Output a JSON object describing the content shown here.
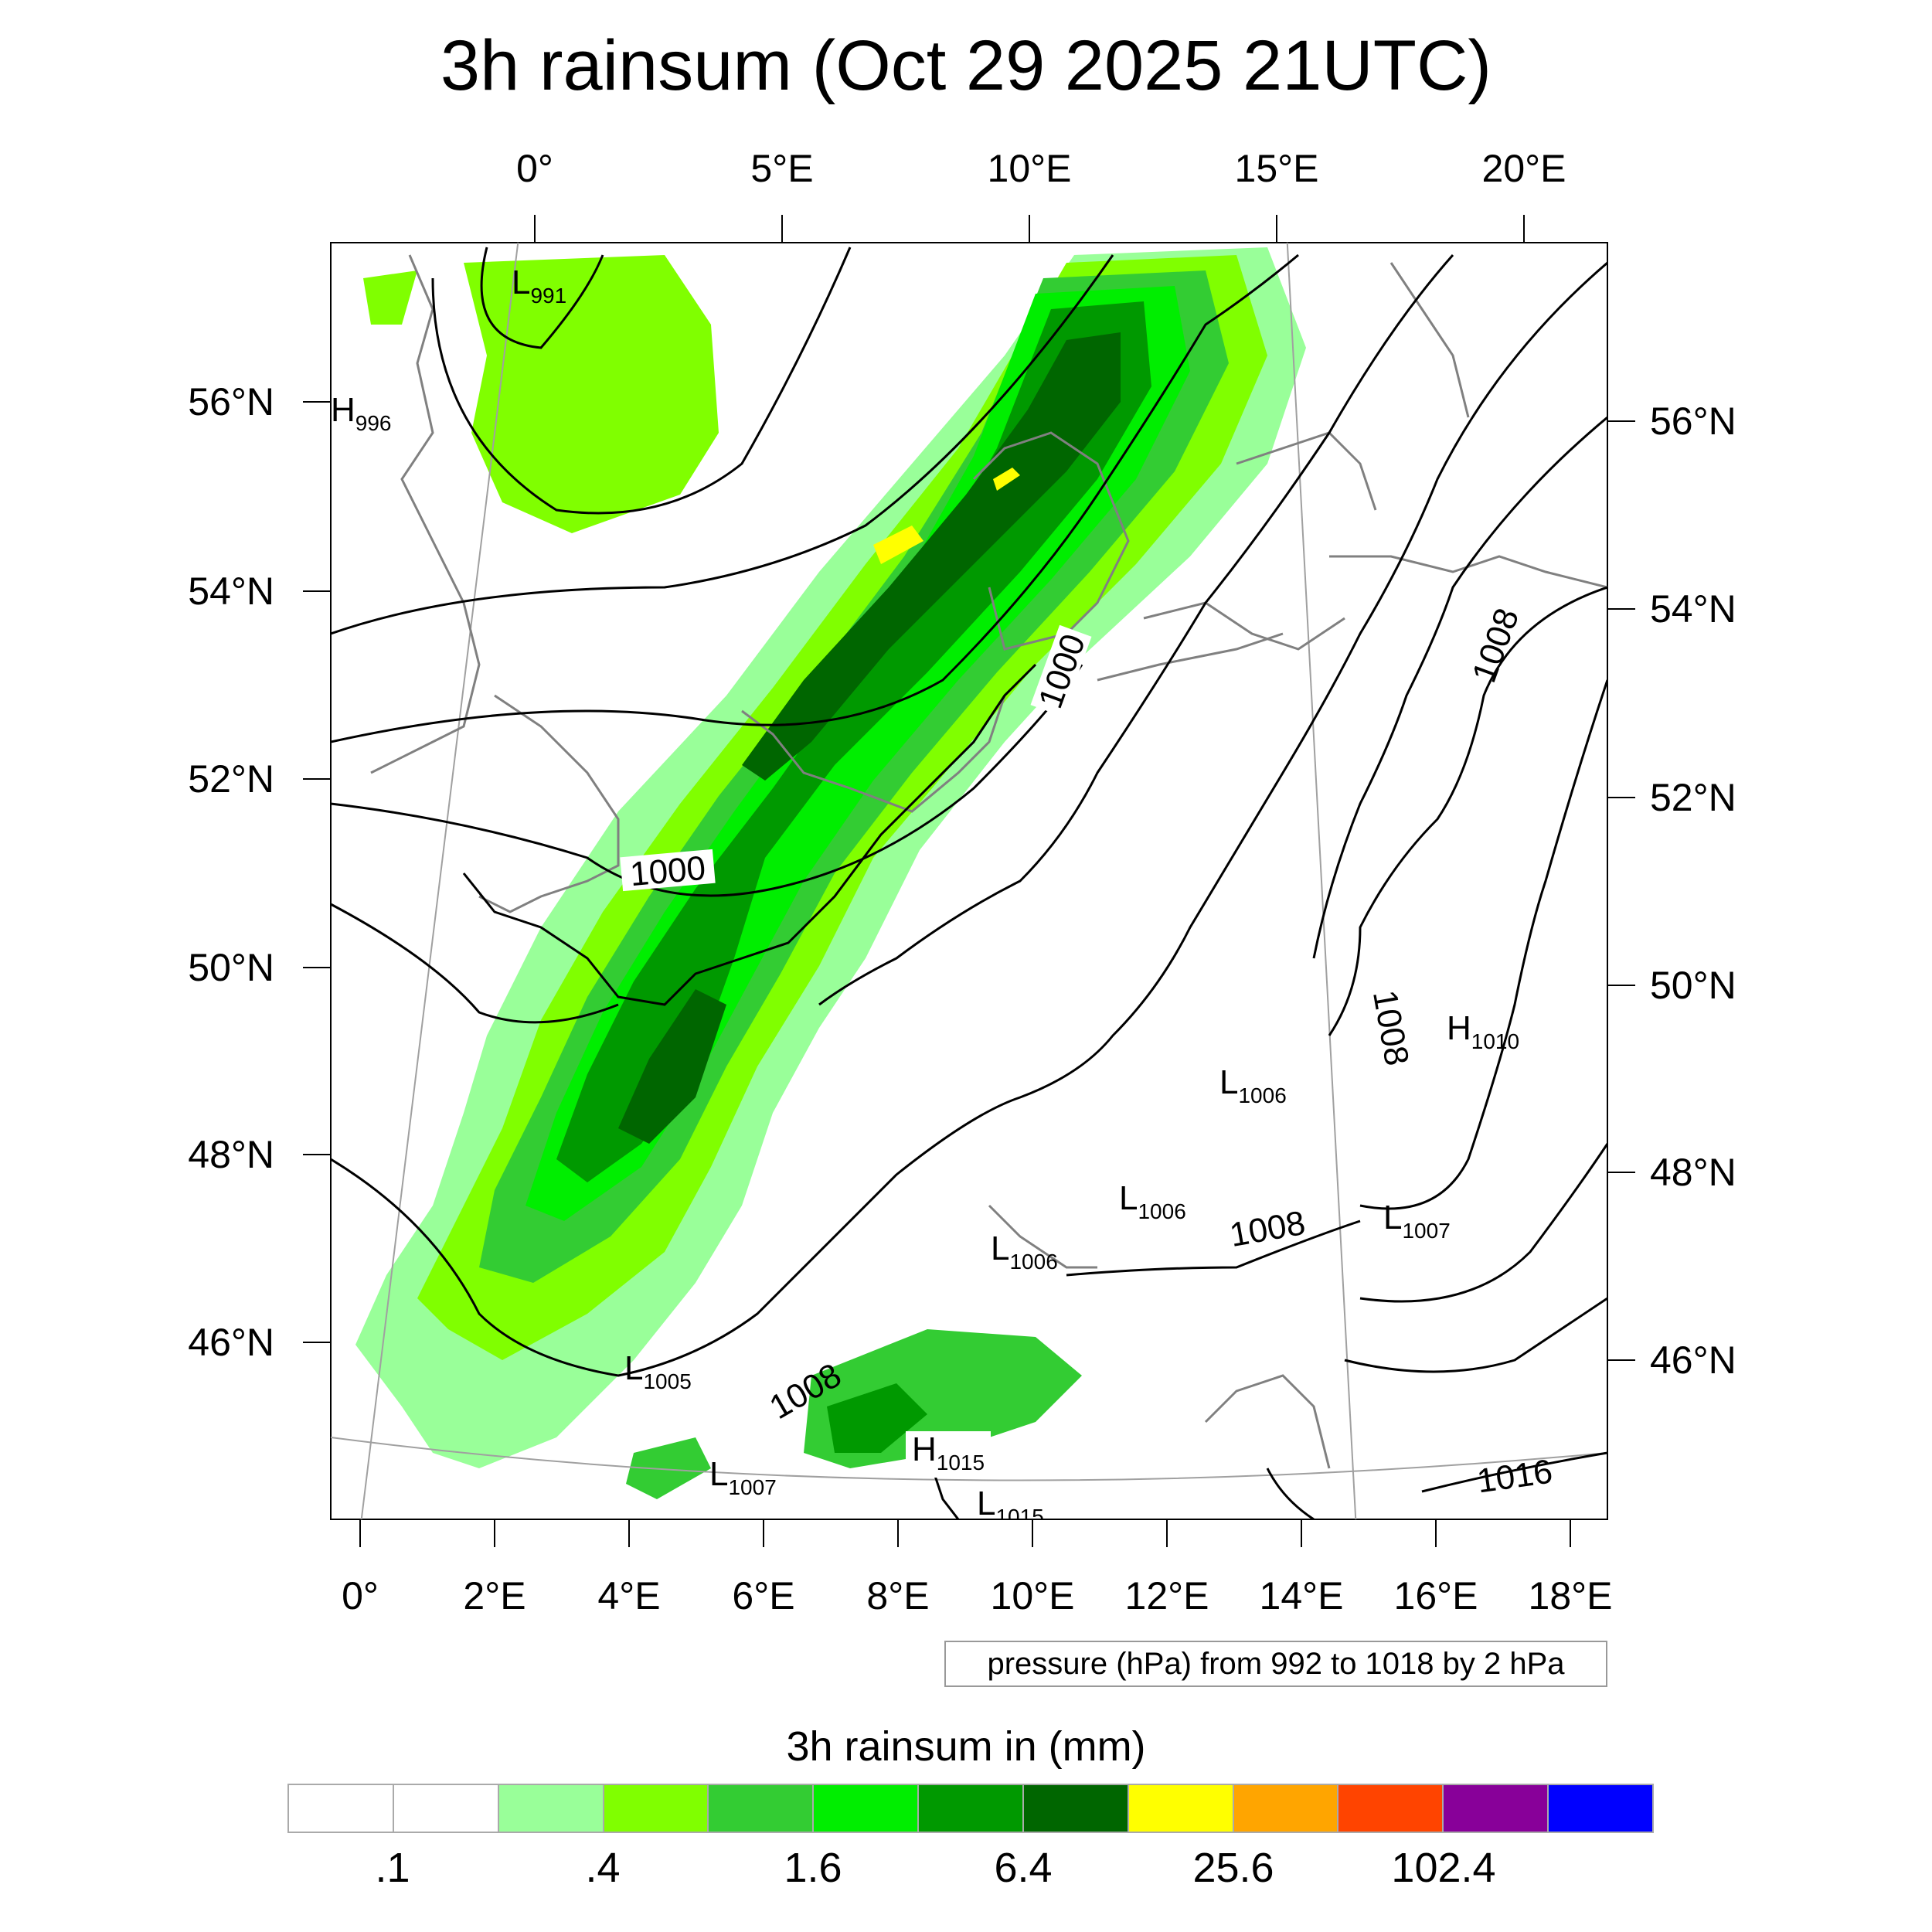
{
  "title": "3h rainsum (Oct 29 2025 21UTC)",
  "map": {
    "top_axis_labels": [
      "0°",
      "5°E",
      "10°E",
      "15°E",
      "20°E"
    ],
    "bottom_axis_labels": [
      "0°",
      "2°E",
      "4°E",
      "6°E",
      "8°E",
      "10°E",
      "12°E",
      "14°E",
      "16°E",
      "18°E"
    ],
    "left_axis_labels": [
      "56°N",
      "54°N",
      "52°N",
      "50°N",
      "48°N",
      "46°N"
    ],
    "right_axis_labels": [
      "56°N",
      "54°N",
      "52°N",
      "50°N",
      "48°N",
      "46°N"
    ],
    "pressure_centers": [
      {
        "type": "L",
        "value": "991"
      },
      {
        "type": "H",
        "value": "996"
      },
      {
        "type": "H",
        "value": "1010"
      },
      {
        "type": "L",
        "value": "1006"
      },
      {
        "type": "L",
        "value": "1006"
      },
      {
        "type": "L",
        "value": "1007"
      },
      {
        "type": "L",
        "value": "1006"
      },
      {
        "type": "L",
        "value": "1005"
      },
      {
        "type": "H",
        "value": "1015"
      },
      {
        "type": "L",
        "value": "1007"
      },
      {
        "type": "L",
        "value": "1015"
      }
    ],
    "contour_labels": [
      "1000",
      "1000",
      "1008",
      "1008",
      "1008",
      "1008",
      "1016"
    ],
    "colors": {
      "coastline": "#808080",
      "isobar": "#000000",
      "gridline": "#a0a0a0"
    }
  },
  "pressure_note": "pressure (hPa) from 992 to 1018 by 2 hPa",
  "legend": {
    "title": "3h rainsum in (mm)",
    "colors": [
      "#ffffff",
      "#ffffff",
      "#99ff99",
      "#80ff00",
      "#33cc33",
      "#00ee00",
      "#009900",
      "#006600",
      "#ffff00",
      "#ffa500",
      "#ff4400",
      "#880099",
      "#0000ff"
    ],
    "labels": [
      ".1",
      ".4",
      "1.6",
      "6.4",
      "25.6",
      "102.4"
    ]
  }
}
